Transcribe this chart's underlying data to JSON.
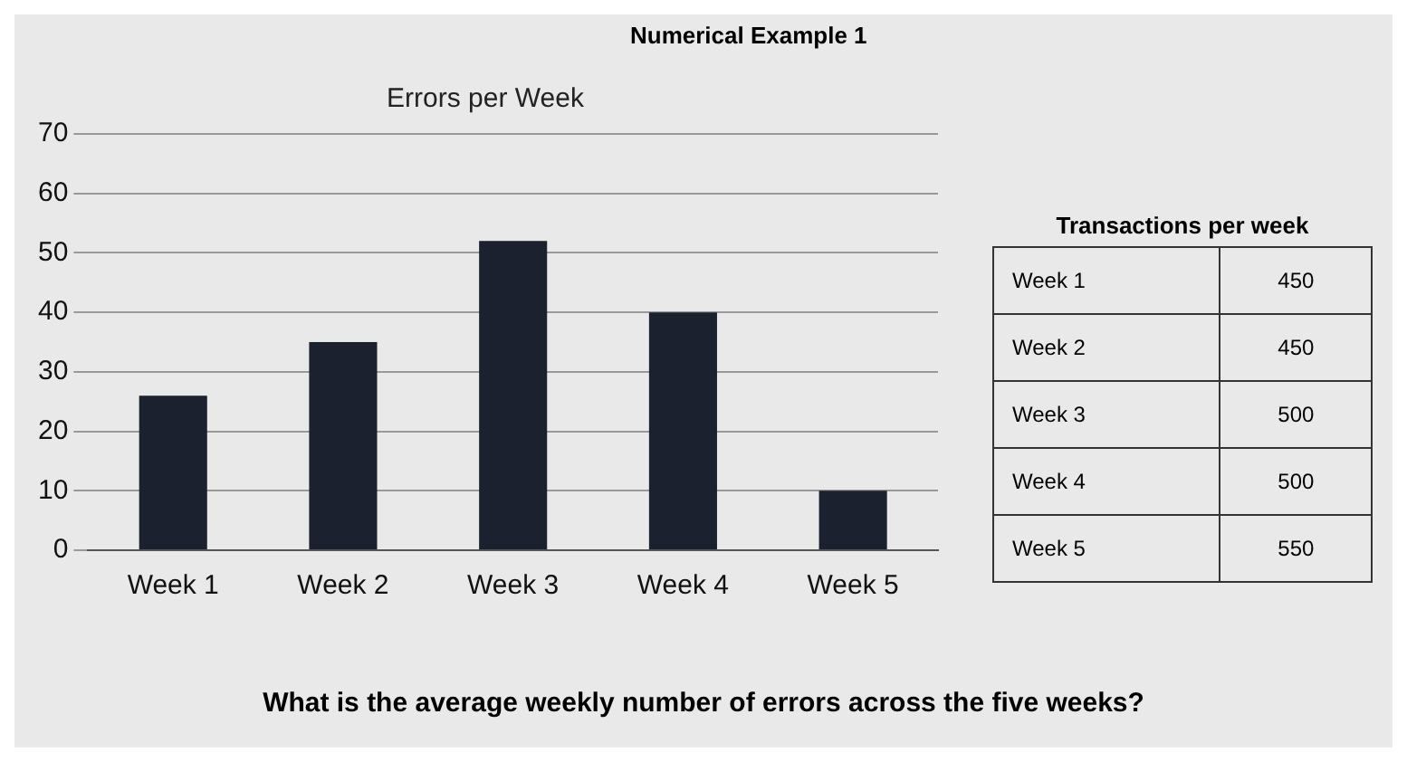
{
  "chart_data": [
    {
      "type": "bar",
      "title": "Errors per Week",
      "categories": [
        "Week 1",
        "Week 2",
        "Week 3",
        "Week 4",
        "Week 5"
      ],
      "values": [
        26,
        35,
        52,
        40,
        10
      ],
      "color": "#1c2130",
      "ylim": [
        0,
        70
      ],
      "yticks": [
        0,
        10,
        20,
        30,
        40,
        50,
        60,
        70
      ],
      "grid": "y",
      "annotations": [
        "Numerical Example 1",
        "What is the average weekly number of errors across the five weeks?"
      ]
    },
    {
      "type": "other",
      "title": "Transactions per week",
      "categories": [
        "Week 1",
        "Week 2",
        "Week 3",
        "Week 4",
        "Week 5"
      ],
      "values": [
        450,
        450,
        500,
        500,
        550
      ],
      "data_labels": true
    }
  ]
}
